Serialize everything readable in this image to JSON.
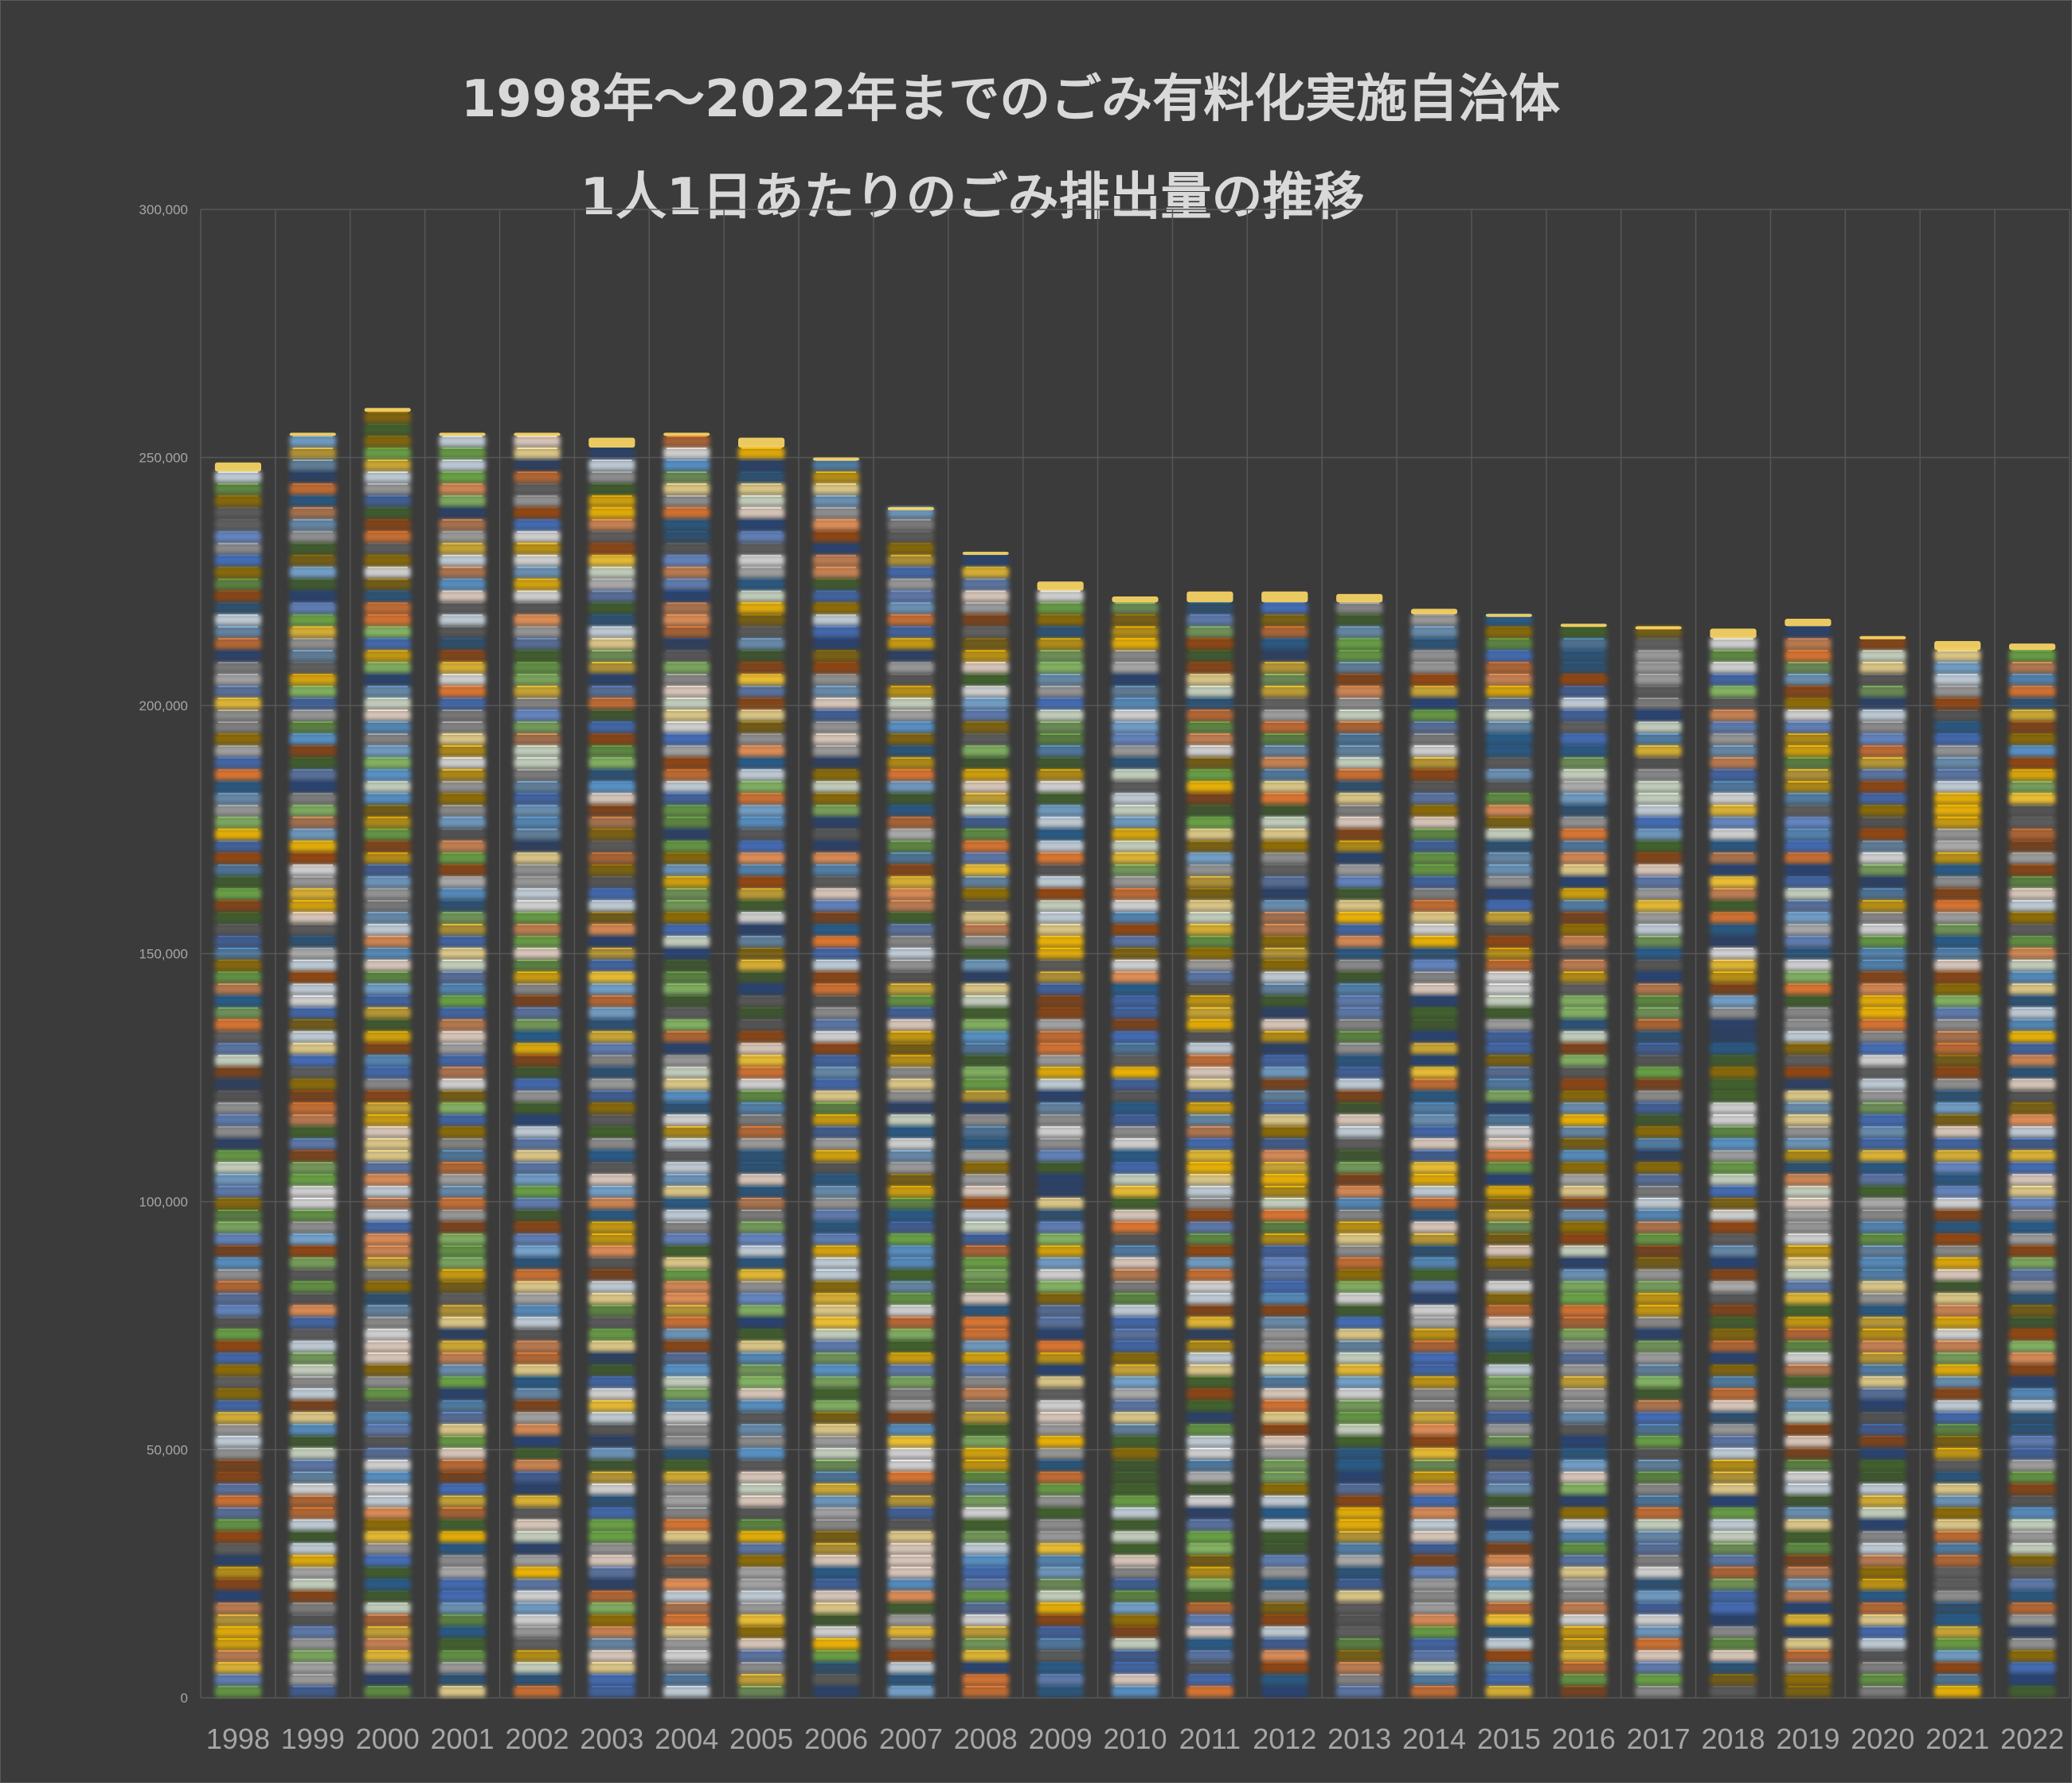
{
  "chart_data": {
    "type": "bar",
    "stacked": true,
    "title": "1998年～2022年までのごみ有料化実施自治体",
    "subtitle": "1人1日あたりのごみ排出量の推移",
    "categories": [
      "1998",
      "1999",
      "2000",
      "2001",
      "2002",
      "2003",
      "2004",
      "2005",
      "2006",
      "2007",
      "2008",
      "2009",
      "2010",
      "2011",
      "2012",
      "2013",
      "2014",
      "2015",
      "2016",
      "2017",
      "2018",
      "2019",
      "2020",
      "2021",
      "2022"
    ],
    "totals": [
      249000,
      255000,
      260000,
      255000,
      255000,
      254000,
      255000,
      254000,
      250000,
      240000,
      231000,
      225000,
      222000,
      223000,
      223000,
      222500,
      219500,
      218500,
      216500,
      216000,
      215500,
      217500,
      214000,
      213000,
      212500
    ],
    "ylim": [
      0,
      300000
    ],
    "yticks": [
      0,
      50000,
      100000,
      150000,
      200000,
      250000,
      300000
    ],
    "ytick_labels": [
      "0",
      "50,000",
      "100,000",
      "150,000",
      "200,000",
      "250,000",
      "300,000"
    ],
    "grid": true,
    "legend": "none",
    "palette": [
      "#4472c4",
      "#ed7d31",
      "#a5a5a5",
      "#ffc000",
      "#5b9bd5",
      "#70ad47",
      "#264478",
      "#9e480e",
      "#636363",
      "#997300",
      "#255e91",
      "#43682b",
      "#698ed0",
      "#f1975a",
      "#b7b7b7",
      "#ffcd33",
      "#7cafdd",
      "#8cc168"
    ]
  },
  "colors": {
    "background": "#3b3b3b",
    "grid": "#575757",
    "title": "#d9d9d9",
    "tick": "#a6a6a6"
  }
}
